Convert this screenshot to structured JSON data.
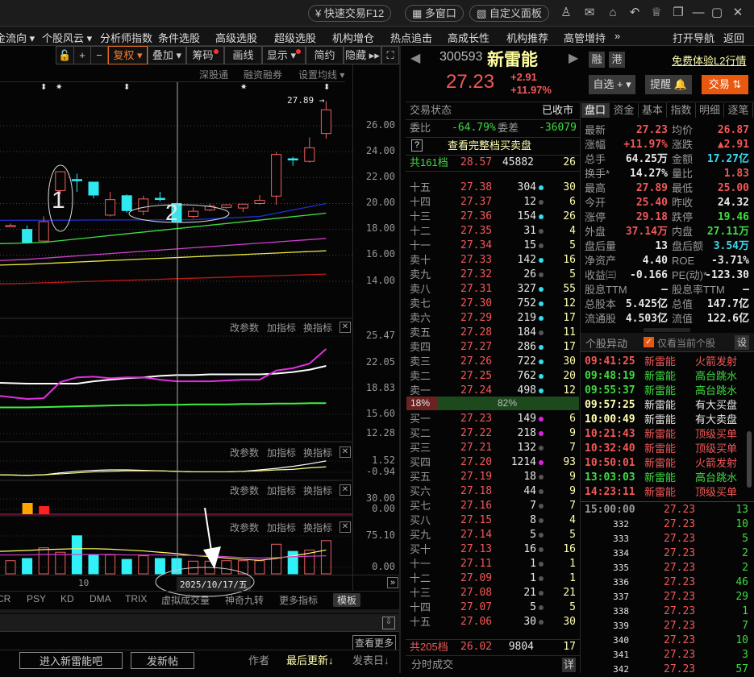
{
  "title_bar": {
    "quick_trade": "快速交易F12",
    "multi_window": "多窗口",
    "custom_panel": "自定义面板"
  },
  "menu": {
    "items": [
      "金流向 ▾",
      "个股风云 ▾",
      "分析师指数",
      "条件选股",
      "高级选股",
      "超级选股",
      "机构增仓",
      "热点追击",
      "高成长性",
      "机构推荐",
      "高管增持",
      "»"
    ],
    "open_nav": "打开导航",
    "back": "返回"
  },
  "chart_toolbar": {
    "fuquan": "复权 ▾",
    "overlay": "叠加 ▾",
    "chips": "筹码",
    "draw": "画线",
    "display": "显示 ▾",
    "simple": "简约",
    "hide": "隐藏 ▸▸"
  },
  "chart_header": {
    "sgt": "深股通",
    "margin": "融资融券",
    "set_ma": "设置均线 ▾"
  },
  "chart_data": {
    "type": "candlestick",
    "price_ticks": [
      "26.00",
      "24.00",
      "22.00",
      "20.00",
      "18.00",
      "16.00",
      "14.00"
    ],
    "high_label": "27.89 →",
    "annotations": [
      "1",
      "2"
    ],
    "candles": [
      [
        18.3,
        18.45,
        18.25,
        18.3
      ],
      [
        18.0,
        18.3,
        16.9,
        17.0
      ],
      [
        17.1,
        19.0,
        17.0,
        18.6
      ],
      [
        21.0,
        22.45,
        20.7,
        22.45
      ],
      [
        21.85,
        22.3,
        20.9,
        21.75
      ],
      [
        21.65,
        21.65,
        20.4,
        20.65
      ],
      [
        19.1,
        20.9,
        19.0,
        20.3
      ],
      [
        20.6,
        20.7,
        19.3,
        19.45
      ],
      [
        19.4,
        20.6,
        19.1,
        20.35
      ],
      [
        20.4,
        20.9,
        20.15,
        20.35
      ],
      [
        20.0,
        20.05,
        18.6,
        18.6
      ],
      [
        19.0,
        19.7,
        18.85,
        19.4
      ],
      [
        19.5,
        20.0,
        19.4,
        19.8
      ],
      [
        19.7,
        19.95,
        19.6,
        19.9
      ],
      [
        19.65,
        20.0,
        19.35,
        19.95
      ],
      [
        20.0,
        20.65,
        19.9,
        20.25
      ],
      [
        20.57,
        23.97,
        19.9,
        23.78
      ],
      [
        23.45,
        23.6,
        22.9,
        23.4
      ],
      [
        23.25,
        25.1,
        23.15,
        24.3
      ],
      [
        25.4,
        27.89,
        25.0,
        27.23
      ]
    ],
    "ma_lines": [
      {
        "color": "#2030d0",
        "points": [
          [
            0,
            18.7
          ],
          [
            11,
            18.75
          ],
          [
            15,
            19.0
          ],
          [
            19,
            20.0
          ]
        ]
      },
      {
        "color": "#40dd40",
        "points": [
          [
            0,
            16.9
          ],
          [
            2,
            17.0
          ],
          [
            19,
            19.25
          ]
        ]
      },
      {
        "color": "#d040d0",
        "points": [
          [
            0,
            15.6
          ],
          [
            19,
            17.3
          ]
        ]
      },
      {
        "color": "#e8e840",
        "points": [
          [
            0,
            15.25
          ],
          [
            19,
            16.35
          ]
        ]
      },
      {
        "color": "#c01818",
        "points": [
          [
            0,
            13.8
          ],
          [
            19,
            14.55
          ]
        ]
      }
    ],
    "panels": [
      {
        "ticks": [
          "25.47",
          "22.05",
          "18.83",
          "15.60",
          "12.28"
        ],
        "range": [
          12.28,
          25.47
        ],
        "lines": [
          {
            "color": "#ffffff",
            "values": [
              19.4,
              19.3,
              19.3,
              19.3,
              19.3,
              19.6,
              19.8,
              20.0,
              20.1,
              20.3,
              20.4,
              20.4,
              20.5,
              20.5,
              20.5,
              20.5,
              20.6,
              20.8,
              21.1,
              21.6
            ]
          },
          {
            "color": "#e030e0",
            "values": [
              17.7,
              17.3,
              17.4,
              19.5,
              20.1,
              20.2,
              20.0,
              20.1,
              20.1,
              19.8,
              19.6,
              19.6,
              19.6,
              19.7,
              19.8,
              19.8,
              21.0,
              21.3,
              21.9,
              23.8
            ]
          },
          {
            "color": "#40ee40",
            "values": [
              16.2,
              16.2,
              16.25,
              16.3,
              16.35,
              16.4,
              16.45,
              16.5,
              16.5,
              16.55,
              16.55,
              16.6,
              16.6,
              16.6,
              16.65,
              16.65,
              16.7,
              16.7,
              16.75,
              16.75
            ]
          }
        ]
      },
      {
        "ticks": [
          "1.52",
          "-0.94"
        ],
        "range": [
          -1.6,
          1.8
        ],
        "lines": [
          {
            "color": "#ffffff",
            "values": [
              -1.3,
              -1.4,
              -1.3,
              -0.9,
              -0.6,
              -0.4,
              -0.3,
              -0.3,
              -0.4,
              -0.5,
              -0.6,
              -0.7,
              -0.7,
              -0.7,
              -0.6,
              -0.3,
              0.0,
              0.4,
              0.9,
              1.5
            ]
          },
          {
            "color": "#ffff80",
            "values": [
              -1.3,
              -1.4,
              -1.3,
              -1.1,
              -0.9,
              -0.7,
              -0.6,
              -0.5,
              -0.5,
              -0.5,
              -0.6,
              -0.7,
              -0.7,
              -0.7,
              -0.6,
              -0.5,
              -0.3,
              -0.2,
              0.1,
              0.3
            ]
          }
        ]
      },
      {
        "ticks": [
          "30.00",
          "0.00"
        ],
        "range": [
          -10,
          35
        ],
        "bars": [
          {
            "index": 1,
            "value": 20,
            "color": "#ffa500"
          },
          {
            "index": 2,
            "value": 10,
            "color": "#ff2020"
          }
        ]
      },
      {
        "ticks": [
          "75.10",
          "0.00"
        ],
        "range": [
          -5,
          80
        ],
        "volume": [
          19,
          24,
          48,
          38,
          75,
          32,
          32,
          22,
          30,
          24,
          24,
          18,
          18,
          19,
          19,
          19,
          56,
          40,
          43,
          64
        ],
        "lines": [
          {
            "color": "#ffff60",
            "values": [
              40,
              42,
              44,
              45,
              46,
              46,
              45,
              43,
              41,
              38,
              35,
              31,
              28,
              25,
              22,
              20,
              24,
              30,
              36,
              43
            ]
          },
          {
            "color": "#d040d0",
            "values": [
              32,
              32,
              33,
              33,
              33,
              33,
              33,
              32,
              32,
              32,
              31,
              31,
              30,
              28,
              26,
              25,
              26,
              28,
              29,
              30
            ]
          }
        ]
      }
    ]
  },
  "panel_buttons": {
    "params": "改参数",
    "add": "加指标",
    "switch": "换指标",
    "close": "✕"
  },
  "date_axis": {
    "tick": "10",
    "cursor_date": "2025/10/17/五",
    "expand": "»"
  },
  "indicator_tabs": [
    "CR",
    "PSY",
    "KD",
    "DMA",
    "TRIX",
    "虚拟成交量",
    "神奇九转",
    "更多指标",
    "模板"
  ],
  "forum": {
    "more": "查看更多",
    "enter": "进入新雷能吧",
    "post": "发新帖",
    "author": "作者",
    "last_update": "最后更新↓",
    "post_date": "发表日↓"
  },
  "quote": {
    "code": "300593",
    "name": "新雷能",
    "price": "27.23",
    "change": "+2.91",
    "pct": "+11.97%",
    "tag_margin": "融",
    "tag_hk": "港",
    "l2_link": "免费体验L2行情",
    "watch": "自选 + ▾",
    "alert": "提醒 🔔",
    "trade": "交易 ⇅"
  },
  "orderbook": {
    "status_label": "交易状态",
    "status_value": "已收市",
    "weibi_label": "委比",
    "weibi": "-64.79%",
    "weicha_label": "委差",
    "weicha": "-36079",
    "help": "?",
    "view_full": "查看完整档买卖盘",
    "sell_total": {
      "label": "共161档",
      "price": "28.57",
      "vol": "45882",
      "count": "26"
    },
    "sells": [
      [
        "十五",
        "27.38",
        "304",
        "c",
        "30"
      ],
      [
        "十四",
        "27.37",
        "12",
        "g",
        "6"
      ],
      [
        "十三",
        "27.36",
        "154",
        "c",
        "26"
      ],
      [
        "十二",
        "27.35",
        "31",
        "g",
        "4"
      ],
      [
        "十一",
        "27.34",
        "15",
        "g",
        "5"
      ],
      [
        "卖十",
        "27.33",
        "142",
        "c",
        "16"
      ],
      [
        "卖九",
        "27.32",
        "26",
        "g",
        "5"
      ],
      [
        "卖八",
        "27.31",
        "327",
        "c",
        "55"
      ],
      [
        "卖七",
        "27.30",
        "752",
        "c",
        "12"
      ],
      [
        "卖六",
        "27.29",
        "219",
        "c",
        "17"
      ],
      [
        "卖五",
        "27.28",
        "184",
        "g",
        "11"
      ],
      [
        "卖四",
        "27.27",
        "286",
        "c",
        "17"
      ],
      [
        "卖三",
        "27.26",
        "722",
        "c",
        "30"
      ],
      [
        "卖二",
        "27.25",
        "762",
        "c",
        "20"
      ],
      [
        "卖一",
        "27.24",
        "498",
        "c",
        "12"
      ]
    ],
    "ratio": {
      "sell": "18%",
      "buy": "82%",
      "sell_fraction": 0.18
    },
    "buys": [
      [
        "买一",
        "27.23",
        "149",
        "m",
        "6"
      ],
      [
        "买二",
        "27.22",
        "218",
        "m",
        "9"
      ],
      [
        "买三",
        "27.21",
        "132",
        "g",
        "7"
      ],
      [
        "买四",
        "27.20",
        "1214",
        "m",
        "93"
      ],
      [
        "买五",
        "27.19",
        "18",
        "g",
        "9"
      ],
      [
        "买六",
        "27.18",
        "44",
        "g",
        "9"
      ],
      [
        "买七",
        "27.16",
        "7",
        "g",
        "7"
      ],
      [
        "买八",
        "27.15",
        "8",
        "g",
        "4"
      ],
      [
        "买九",
        "27.14",
        "5",
        "g",
        "5"
      ],
      [
        "买十",
        "27.13",
        "16",
        "g",
        "16"
      ],
      [
        "十一",
        "27.11",
        "1",
        "g",
        "1"
      ],
      [
        "十二",
        "27.09",
        "1",
        "g",
        "1"
      ],
      [
        "十三",
        "27.08",
        "21",
        "g",
        "21"
      ],
      [
        "十四",
        "27.07",
        "5",
        "g",
        "5"
      ],
      [
        "十五",
        "27.06",
        "30",
        "g",
        "30"
      ]
    ],
    "buy_total": {
      "label": "共205档",
      "price": "26.02",
      "vol": "9804",
      "count": "17"
    },
    "footer": "分时成交",
    "detail": "详"
  },
  "stats": {
    "tabs": [
      "盘口",
      "资金",
      "基本",
      "指数",
      "明细",
      "逐笔"
    ],
    "rows": [
      [
        "最新",
        "27.23",
        "red",
        "均价",
        "26.87",
        "red"
      ],
      [
        "涨幅",
        "+11.97%",
        "red",
        "涨跌",
        "▲2.91",
        "red"
      ],
      [
        "总手",
        "64.25万",
        "white",
        "金额",
        "17.27亿",
        "cyan"
      ],
      [
        "换手*",
        "14.27%",
        "white",
        "量比",
        "1.83",
        "red"
      ],
      [
        "最高",
        "27.89",
        "red",
        "最低",
        "25.00",
        "red"
      ],
      [
        "今开",
        "25.40",
        "red",
        "昨收",
        "24.32",
        "white"
      ],
      [
        "涨停",
        "29.18",
        "red",
        "跌停",
        "19.46",
        "green"
      ],
      [
        "外盘",
        "37.14万",
        "red",
        "内盘",
        "27.11万",
        "green"
      ],
      [
        "盘后量",
        "13",
        "white",
        "盘后额",
        "3.54万",
        "cyan"
      ],
      [
        "净资产",
        "4.40",
        "white",
        "ROE",
        "-3.71%",
        "white"
      ],
      [
        "收益㈢",
        "-0.166",
        "white",
        "PE(动)*",
        "-123.30",
        "white"
      ],
      [
        "股息TTM",
        "—",
        "white",
        "股息率TTM",
        "—",
        "white"
      ],
      [
        "总股本",
        "5.425亿",
        "white",
        "总值",
        "147.7亿",
        "white"
      ],
      [
        "流通股",
        "4.503亿",
        "white",
        "流值",
        "122.6亿",
        "white"
      ]
    ]
  },
  "abnormal": {
    "title": "个股异动",
    "only_current": "仅看当前个股",
    "settings": "设",
    "events": [
      [
        "09:41:25",
        "新雷能",
        "火箭发射",
        "red"
      ],
      [
        "09:48:19",
        "新雷能",
        "高台跳水",
        "green"
      ],
      [
        "09:55:37",
        "新雷能",
        "高台跳水",
        "green"
      ],
      [
        "09:57:25",
        "新雷能",
        "有大买盘",
        "white"
      ],
      [
        "10:00:49",
        "新雷能",
        "有大卖盘",
        "white"
      ],
      [
        "10:21:43",
        "新雷能",
        "顶级买单",
        "red"
      ],
      [
        "10:32:40",
        "新雷能",
        "顶级买单",
        "red"
      ],
      [
        "10:50:01",
        "新雷能",
        "火箭发射",
        "red"
      ],
      [
        "13:03:03",
        "新雷能",
        "高台跳水",
        "green"
      ],
      [
        "14:23:11",
        "新雷能",
        "顶级买单",
        "red"
      ]
    ]
  },
  "trades": [
    [
      "15:00:00",
      "27.23",
      "13"
    ],
    [
      "332",
      "27.23",
      "10"
    ],
    [
      "333",
      "27.23",
      "5"
    ],
    [
      "334",
      "27.23",
      "2"
    ],
    [
      "335",
      "27.23",
      "2"
    ],
    [
      "336",
      "27.23",
      "46"
    ],
    [
      "337",
      "27.23",
      "29"
    ],
    [
      "338",
      "27.23",
      "1"
    ],
    [
      "339",
      "27.23",
      "7"
    ],
    [
      "340",
      "27.23",
      "10"
    ],
    [
      "341",
      "27.23",
      "3"
    ],
    [
      "342",
      "27.23",
      "57"
    ]
  ]
}
